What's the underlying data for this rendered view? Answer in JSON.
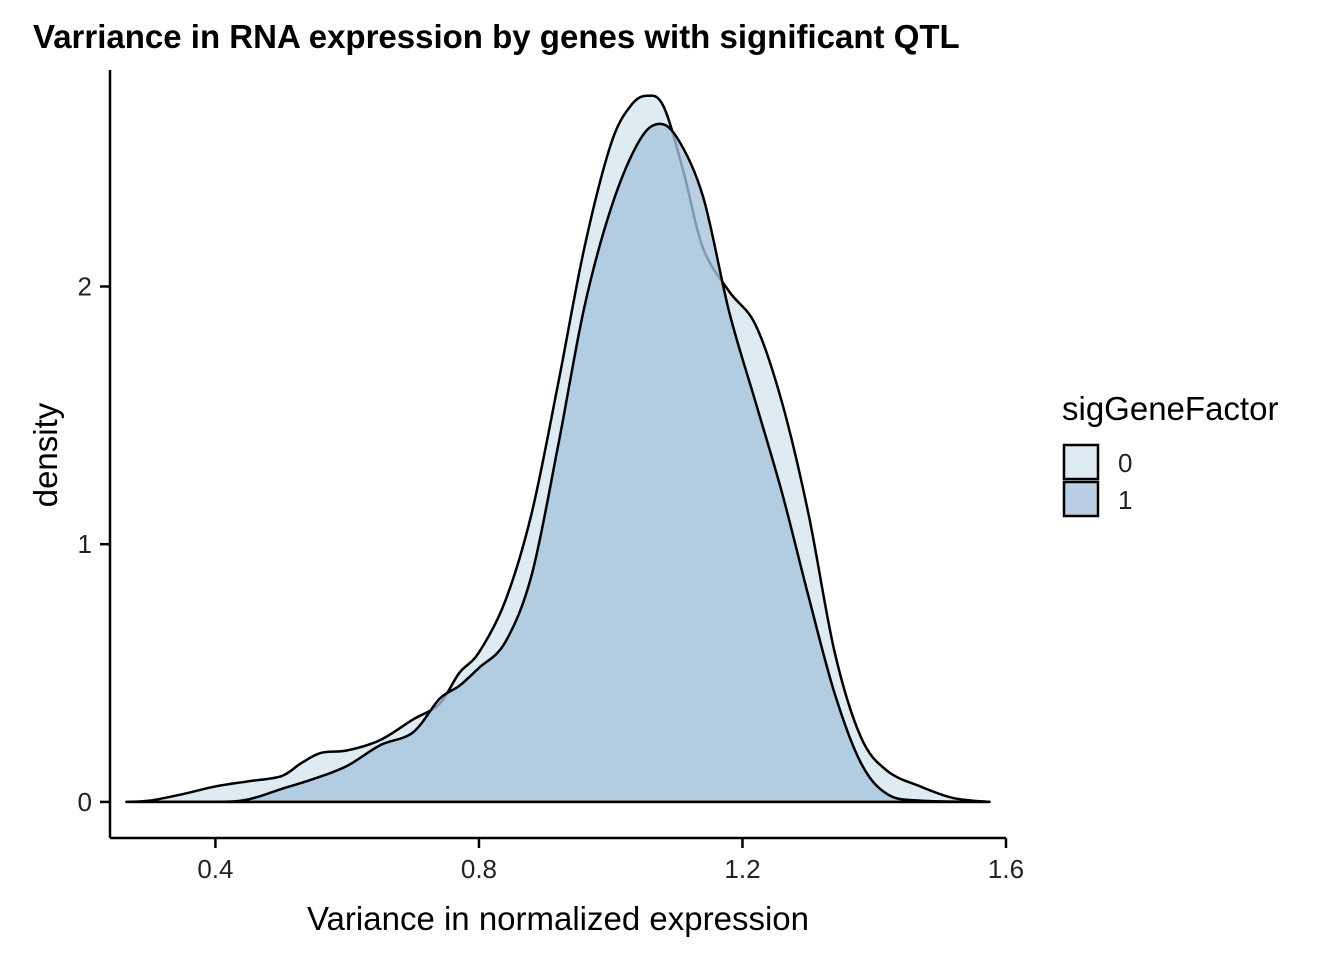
{
  "chart_data": {
    "type": "area",
    "title": "Varriance in RNA expression by genes with significant QTL",
    "xlabel": "Variance in normalized expression",
    "ylabel": "density",
    "xlim": [
      0.24,
      1.6
    ],
    "ylim": [
      -0.14,
      2.84
    ],
    "xticks": [
      0.4,
      0.8,
      1.2,
      1.6
    ],
    "xtick_labels": [
      "0.4",
      "0.8",
      "1.2",
      "1.6"
    ],
    "yticks": [
      0,
      1,
      2
    ],
    "ytick_labels": [
      "0",
      "1",
      "2"
    ],
    "grid": false,
    "legend": {
      "title": "sigGeneFactor",
      "placement": "right"
    },
    "series": [
      {
        "name": "0",
        "color": "#deebf3",
        "x": [
          0.265,
          0.3,
          0.35,
          0.4,
          0.45,
          0.5,
          0.53,
          0.56,
          0.6,
          0.65,
          0.7,
          0.74,
          0.77,
          0.8,
          0.84,
          0.88,
          0.92,
          0.96,
          1.0,
          1.03,
          1.055,
          1.08,
          1.11,
          1.14,
          1.18,
          1.22,
          1.26,
          1.3,
          1.34,
          1.38,
          1.42,
          1.47,
          1.52,
          1.575
        ],
        "y": [
          0.0,
          0.005,
          0.03,
          0.06,
          0.08,
          0.1,
          0.15,
          0.19,
          0.2,
          0.24,
          0.32,
          0.38,
          0.5,
          0.58,
          0.78,
          1.12,
          1.62,
          2.15,
          2.55,
          2.7,
          2.74,
          2.7,
          2.45,
          2.15,
          1.98,
          1.85,
          1.55,
          1.12,
          0.58,
          0.25,
          0.12,
          0.06,
          0.015,
          0.0
        ]
      },
      {
        "name": "1",
        "color": "#a5c3dc",
        "x": [
          0.265,
          0.4,
          0.45,
          0.5,
          0.55,
          0.6,
          0.65,
          0.7,
          0.74,
          0.77,
          0.8,
          0.84,
          0.88,
          0.92,
          0.96,
          1.0,
          1.04,
          1.07,
          1.1,
          1.14,
          1.18,
          1.22,
          1.26,
          1.3,
          1.34,
          1.38,
          1.42,
          1.47,
          1.575
        ],
        "y": [
          0.0,
          0.0,
          0.01,
          0.05,
          0.09,
          0.14,
          0.22,
          0.27,
          0.4,
          0.45,
          0.52,
          0.62,
          0.88,
          1.38,
          1.92,
          2.3,
          2.55,
          2.63,
          2.58,
          2.35,
          1.9,
          1.55,
          1.2,
          0.8,
          0.42,
          0.15,
          0.03,
          0.005,
          0.0
        ]
      }
    ]
  }
}
